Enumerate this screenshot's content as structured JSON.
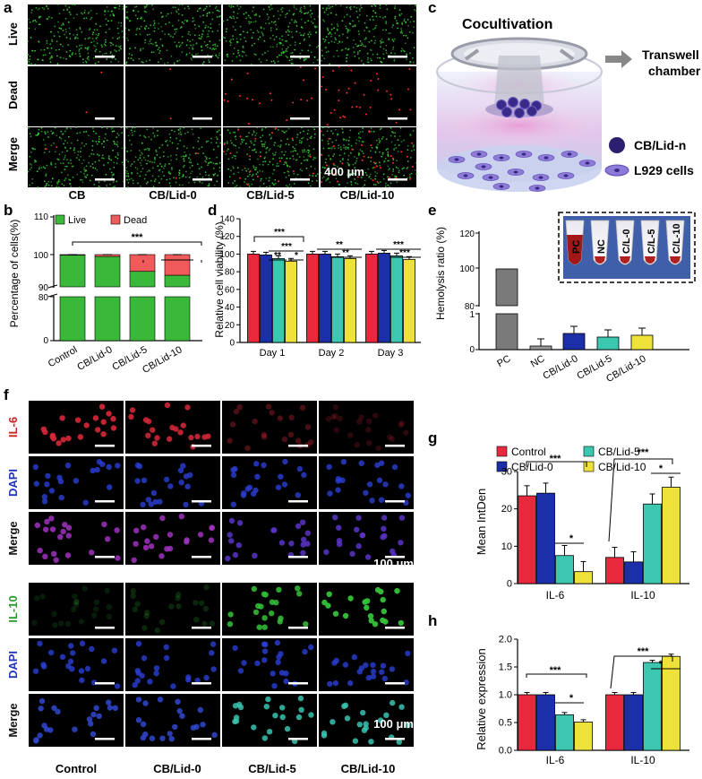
{
  "panel_letters": {
    "a": "a",
    "b": "b",
    "c": "c",
    "d": "d",
    "e": "e",
    "f": "f",
    "g": "g",
    "h": "h"
  },
  "panel_a": {
    "row_labels": [
      "Live",
      "Dead",
      "Merge"
    ],
    "column_labels": [
      "CB",
      "CB/Lid-0",
      "CB/Lid-5",
      "CB/Lid-10"
    ],
    "scale_bar": "400 μm",
    "dead_density": [
      0.05,
      0.05,
      0.5,
      0.9
    ]
  },
  "panel_c": {
    "title": "Cocultivation",
    "chamber_label_line1": "Transwell",
    "chamber_label_line2": "chamber",
    "legend_scaffold": "CB/Lid-n",
    "legend_cells": "L929 cells"
  },
  "panel_f": {
    "row_labels": [
      "IL-6",
      "DAPI",
      "Merge",
      "IL-10",
      "DAPI",
      "Merge"
    ],
    "row_colors": [
      "#cc2222",
      "#2233bb",
      "#111111",
      "#2a9a2a",
      "#2233bb",
      "#111111"
    ],
    "column_labels": [
      "Control",
      "CB/Lid-0",
      "CB/Lid-5",
      "CB/Lid-10"
    ],
    "scale_bar_top": "100 μm",
    "scale_bar_bottom": "100 μm"
  },
  "colors": {
    "red": "#e8283c",
    "blue": "#1a2fa8",
    "teal": "#3cc8b0",
    "yellow": "#eee23a",
    "green": "#3ab83a",
    "gray": "#7a7a7a"
  },
  "chart_data": [
    {
      "panel": "b",
      "type": "bar",
      "stacked": true,
      "ylabel": "Percentage of cells(%)",
      "categories": [
        "Control",
        "CB/Lid-0",
        "CB/Lid-5",
        "CB/Lid-10"
      ],
      "series": [
        {
          "name": "Live",
          "values": [
            99.8,
            99.4,
            94.8,
            93.6
          ]
        },
        {
          "name": "Dead",
          "values": [
            0.2,
            0.6,
            5.2,
            6.4
          ]
        }
      ],
      "y_ticks": [
        "0",
        "80",
        "90",
        "100",
        "110"
      ],
      "axis_break": [
        80,
        90
      ],
      "significance": [
        "***",
        "**"
      ],
      "legend_position": "top"
    },
    {
      "panel": "d",
      "type": "bar",
      "ylabel": "Relative cell viability (%)",
      "categories": [
        "Day 1",
        "Day 2",
        "Day 3"
      ],
      "series": [
        {
          "values": [
            100,
            100,
            100
          ]
        },
        {
          "values": [
            99,
            100,
            101
          ]
        },
        {
          "values": [
            95,
            97,
            98
          ]
        },
        {
          "values": [
            92,
            95,
            94
          ]
        }
      ],
      "ylim": [
        0,
        140
      ],
      "y_ticks": [
        "0",
        "20",
        "40",
        "60",
        "80",
        "100",
        "120",
        "140"
      ],
      "significance": [
        {
          "category": "Day 1",
          "marks": [
            "***",
            "***",
            "**",
            "*"
          ]
        },
        {
          "category": "Day 2",
          "marks": [
            "**",
            "**"
          ]
        },
        {
          "category": "Day 3",
          "marks": [
            "***",
            "***"
          ]
        }
      ]
    },
    {
      "panel": "e",
      "type": "bar",
      "ylabel": "Hemolysis ratio (%)",
      "categories": [
        "PC",
        "NC",
        "CB/Lid-0",
        "CB/Lid-5",
        "CB/Lid-10"
      ],
      "values": [
        100,
        0.1,
        0.45,
        0.35,
        0.4
      ],
      "y_ticks": [
        "0",
        "1",
        "80",
        "100",
        "120"
      ],
      "axis_break": [
        1,
        80
      ],
      "inset_tube_labels": [
        "PC",
        "NC",
        "C/L-0",
        "C/L-5",
        "C/L-10"
      ]
    },
    {
      "panel": "g",
      "type": "bar",
      "ylabel": "Mean IntDen",
      "categories": [
        "IL-6",
        "IL-10"
      ],
      "series": [
        {
          "name": "Control",
          "values": [
            23.5,
            7.0
          ]
        },
        {
          "name": "CB/Lid-0",
          "values": [
            24.2,
            5.8
          ]
        },
        {
          "name": "CB/Lid-5",
          "values": [
            7.5,
            21.3
          ]
        },
        {
          "name": "CB/Lid-10",
          "values": [
            3.2,
            25.8
          ]
        }
      ],
      "ylim": [
        0,
        30
      ],
      "y_ticks": [
        "0",
        "10",
        "20",
        "30"
      ],
      "significance": [
        "***",
        "*",
        "***",
        "*"
      ]
    },
    {
      "panel": "h",
      "type": "bar",
      "ylabel": "Relative expression",
      "categories": [
        "IL-6",
        "IL-10"
      ],
      "series": [
        {
          "name": "Control",
          "values": [
            1.0,
            1.0
          ]
        },
        {
          "name": "CB/Lid-0",
          "values": [
            1.0,
            1.0
          ]
        },
        {
          "name": "CB/Lid-5",
          "values": [
            0.64,
            1.58
          ]
        },
        {
          "name": "CB/Lid-10",
          "values": [
            0.51,
            1.69
          ]
        }
      ],
      "ylim": [
        0,
        2.0
      ],
      "y_ticks": [
        "0.0",
        "0.5",
        "1.0",
        "1.5",
        "2.0"
      ],
      "significance": [
        "***",
        "*",
        "***",
        "*"
      ]
    }
  ]
}
